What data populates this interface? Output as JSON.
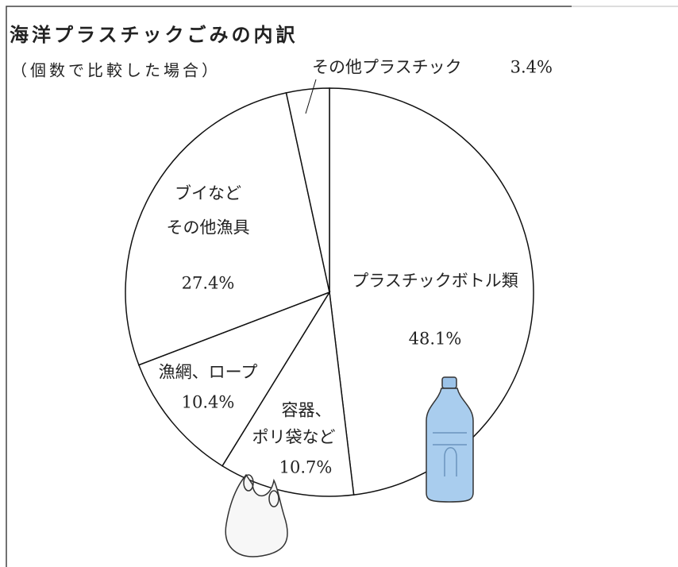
{
  "chart_data": {
    "type": "pie",
    "title": "海洋プラスチックごみの内訳",
    "subtitle": "（個数で比較した場合）",
    "categories": [
      [
        "プラスチックボトル類"
      ],
      [
        "容器、",
        "ポリ袋など"
      ],
      [
        "漁網、ロープ"
      ],
      [
        "ブイなど",
        "その他漁具"
      ],
      [
        "その他プラスチック"
      ]
    ],
    "values": [
      48.1,
      10.7,
      10.4,
      27.4,
      3.4
    ],
    "value_labels": [
      "48.1%",
      "10.7%",
      "10.4%",
      "27.4%",
      "3.4%"
    ],
    "color": "#ffffff"
  }
}
